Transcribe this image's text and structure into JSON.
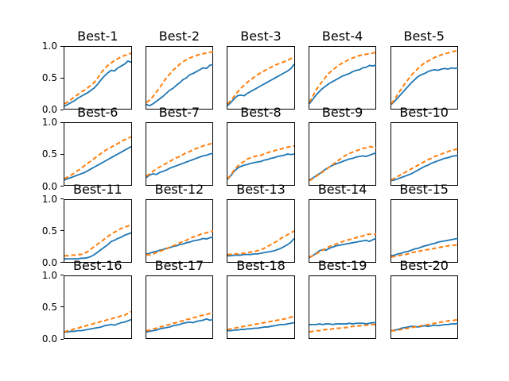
{
  "figure": {
    "background": "#ffffff",
    "rows": 4,
    "cols": 5
  },
  "colors": {
    "blue_series": "#1f77b4",
    "orange_series": "#ff7f0e",
    "spine": "#000000",
    "text": "#000000"
  },
  "chart_data": {
    "type": "line",
    "layout": {
      "rows": 4,
      "cols": 5
    },
    "ylim": [
      0.0,
      1.0
    ],
    "yticks": [
      1.0,
      0.5,
      0.0
    ],
    "ytick_labels": [
      "1.0",
      "0.5",
      "0.0"
    ],
    "xticks": [],
    "xlabel": "",
    "ylabel": "",
    "grid": false,
    "legend": null,
    "n_points": 21,
    "x": [
      0,
      0.05,
      0.1,
      0.15,
      0.2,
      0.25,
      0.3,
      0.35,
      0.4,
      0.45,
      0.5,
      0.55,
      0.6,
      0.65,
      0.7,
      0.75,
      0.8,
      0.85,
      0.9,
      0.95,
      1.0
    ],
    "series_meta": [
      {
        "name": "blue-solid",
        "style": "solid",
        "color": "#1f77b4",
        "linewidth": 1.8
      },
      {
        "name": "orange-dashed",
        "style": "dashed",
        "color": "#ff7f0e",
        "linewidth": 2.0
      }
    ],
    "subplots": [
      {
        "title": "Best-1",
        "blue": [
          0.04,
          0.07,
          0.1,
          0.13,
          0.17,
          0.2,
          0.23,
          0.26,
          0.3,
          0.34,
          0.4,
          0.47,
          0.53,
          0.58,
          0.62,
          0.61,
          0.66,
          0.69,
          0.72,
          0.77,
          0.75
        ],
        "orange": [
          0.08,
          0.11,
          0.15,
          0.19,
          0.23,
          0.27,
          0.3,
          0.34,
          0.38,
          0.43,
          0.5,
          0.58,
          0.65,
          0.7,
          0.74,
          0.78,
          0.81,
          0.84,
          0.86,
          0.87,
          0.9
        ]
      },
      {
        "title": "Best-2",
        "blue": [
          0.07,
          0.05,
          0.08,
          0.12,
          0.16,
          0.2,
          0.25,
          0.3,
          0.33,
          0.38,
          0.42,
          0.47,
          0.5,
          0.55,
          0.57,
          0.6,
          0.63,
          0.66,
          0.65,
          0.7,
          0.72
        ],
        "orange": [
          0.1,
          0.14,
          0.2,
          0.27,
          0.34,
          0.42,
          0.5,
          0.56,
          0.62,
          0.67,
          0.72,
          0.76,
          0.79,
          0.82,
          0.84,
          0.86,
          0.88,
          0.89,
          0.9,
          0.91,
          0.92
        ]
      },
      {
        "title": "Best-3",
        "blue": [
          0.05,
          0.1,
          0.16,
          0.21,
          0.22,
          0.21,
          0.25,
          0.28,
          0.31,
          0.34,
          0.37,
          0.4,
          0.43,
          0.46,
          0.49,
          0.52,
          0.55,
          0.58,
          0.61,
          0.65,
          0.72
        ],
        "orange": [
          0.08,
          0.13,
          0.2,
          0.27,
          0.33,
          0.38,
          0.43,
          0.47,
          0.51,
          0.55,
          0.58,
          0.61,
          0.64,
          0.67,
          0.7,
          0.72,
          0.74,
          0.76,
          0.78,
          0.81,
          0.84
        ]
      },
      {
        "title": "Best-4",
        "blue": [
          0.08,
          0.15,
          0.22,
          0.28,
          0.33,
          0.37,
          0.41,
          0.44,
          0.47,
          0.5,
          0.53,
          0.55,
          0.57,
          0.6,
          0.62,
          0.63,
          0.66,
          0.67,
          0.7,
          0.69,
          0.71
        ],
        "orange": [
          0.1,
          0.2,
          0.3,
          0.38,
          0.45,
          0.52,
          0.58,
          0.63,
          0.67,
          0.71,
          0.74,
          0.77,
          0.8,
          0.82,
          0.84,
          0.86,
          0.87,
          0.88,
          0.89,
          0.9,
          0.91
        ]
      },
      {
        "title": "Best-5",
        "blue": [
          0.07,
          0.12,
          0.18,
          0.24,
          0.3,
          0.36,
          0.42,
          0.47,
          0.52,
          0.55,
          0.57,
          0.6,
          0.62,
          0.63,
          0.62,
          0.64,
          0.65,
          0.64,
          0.66,
          0.65,
          0.66
        ],
        "orange": [
          0.08,
          0.15,
          0.24,
          0.32,
          0.4,
          0.47,
          0.54,
          0.6,
          0.65,
          0.7,
          0.74,
          0.77,
          0.8,
          0.83,
          0.85,
          0.87,
          0.89,
          0.9,
          0.92,
          0.93,
          0.94
        ]
      },
      {
        "title": "Best-6",
        "blue": [
          0.08,
          0.1,
          0.12,
          0.14,
          0.16,
          0.18,
          0.2,
          0.23,
          0.26,
          0.29,
          0.32,
          0.35,
          0.38,
          0.41,
          0.44,
          0.47,
          0.5,
          0.53,
          0.56,
          0.59,
          0.62
        ],
        "orange": [
          0.1,
          0.13,
          0.16,
          0.19,
          0.23,
          0.27,
          0.31,
          0.35,
          0.39,
          0.43,
          0.47,
          0.51,
          0.55,
          0.58,
          0.61,
          0.64,
          0.67,
          0.7,
          0.73,
          0.75,
          0.78
        ]
      },
      {
        "title": "Best-7",
        "blue": [
          0.12,
          0.16,
          0.18,
          0.17,
          0.2,
          0.22,
          0.24,
          0.27,
          0.29,
          0.31,
          0.33,
          0.35,
          0.37,
          0.39,
          0.41,
          0.43,
          0.45,
          0.47,
          0.48,
          0.5,
          0.51
        ],
        "orange": [
          0.14,
          0.18,
          0.22,
          0.26,
          0.29,
          0.32,
          0.35,
          0.38,
          0.41,
          0.44,
          0.46,
          0.49,
          0.52,
          0.54,
          0.57,
          0.59,
          0.61,
          0.63,
          0.65,
          0.66,
          0.68
        ]
      },
      {
        "title": "Best-8",
        "blue": [
          0.09,
          0.15,
          0.22,
          0.27,
          0.3,
          0.32,
          0.33,
          0.35,
          0.36,
          0.37,
          0.38,
          0.4,
          0.41,
          0.43,
          0.44,
          0.46,
          0.47,
          0.48,
          0.5,
          0.49,
          0.5
        ],
        "orange": [
          0.1,
          0.16,
          0.24,
          0.3,
          0.35,
          0.38,
          0.42,
          0.44,
          0.46,
          0.47,
          0.48,
          0.5,
          0.52,
          0.54,
          0.55,
          0.57,
          0.58,
          0.6,
          0.61,
          0.62,
          0.63
        ]
      },
      {
        "title": "Best-9",
        "blue": [
          0.08,
          0.11,
          0.15,
          0.18,
          0.22,
          0.26,
          0.29,
          0.32,
          0.34,
          0.36,
          0.38,
          0.4,
          0.42,
          0.43,
          0.45,
          0.46,
          0.47,
          0.46,
          0.48,
          0.5,
          0.52
        ],
        "orange": [
          0.07,
          0.1,
          0.14,
          0.17,
          0.21,
          0.25,
          0.29,
          0.33,
          0.37,
          0.41,
          0.45,
          0.48,
          0.51,
          0.53,
          0.55,
          0.57,
          0.59,
          0.6,
          0.62,
          0.61,
          0.6
        ]
      },
      {
        "title": "Best-10",
        "blue": [
          0.07,
          0.08,
          0.1,
          0.12,
          0.14,
          0.16,
          0.18,
          0.21,
          0.24,
          0.27,
          0.3,
          0.32,
          0.35,
          0.37,
          0.39,
          0.41,
          0.43,
          0.44,
          0.46,
          0.47,
          0.48
        ],
        "orange": [
          0.08,
          0.11,
          0.14,
          0.17,
          0.2,
          0.23,
          0.26,
          0.29,
          0.32,
          0.35,
          0.38,
          0.41,
          0.43,
          0.46,
          0.48,
          0.5,
          0.52,
          0.54,
          0.56,
          0.57,
          0.58
        ]
      },
      {
        "title": "Best-11",
        "blue": [
          0.05,
          0.05,
          0.05,
          0.05,
          0.05,
          0.06,
          0.06,
          0.07,
          0.09,
          0.12,
          0.16,
          0.2,
          0.24,
          0.28,
          0.33,
          0.35,
          0.38,
          0.4,
          0.43,
          0.45,
          0.47
        ],
        "orange": [
          0.1,
          0.1,
          0.11,
          0.11,
          0.12,
          0.12,
          0.14,
          0.17,
          0.21,
          0.25,
          0.29,
          0.33,
          0.37,
          0.41,
          0.45,
          0.48,
          0.51,
          0.54,
          0.56,
          0.58,
          0.6
        ]
      },
      {
        "title": "Best-12",
        "blue": [
          0.13,
          0.14,
          0.16,
          0.17,
          0.19,
          0.2,
          0.22,
          0.23,
          0.25,
          0.26,
          0.28,
          0.29,
          0.31,
          0.32,
          0.34,
          0.35,
          0.36,
          0.38,
          0.37,
          0.39,
          0.4
        ],
        "orange": [
          0.12,
          0.11,
          0.13,
          0.15,
          0.17,
          0.19,
          0.21,
          0.24,
          0.26,
          0.28,
          0.31,
          0.33,
          0.35,
          0.38,
          0.4,
          0.42,
          0.44,
          0.46,
          0.47,
          0.49,
          0.5
        ]
      },
      {
        "title": "Best-13",
        "blue": [
          0.1,
          0.1,
          0.11,
          0.11,
          0.11,
          0.12,
          0.12,
          0.12,
          0.13,
          0.13,
          0.14,
          0.15,
          0.16,
          0.17,
          0.18,
          0.2,
          0.22,
          0.25,
          0.28,
          0.32,
          0.38
        ],
        "orange": [
          0.12,
          0.12,
          0.13,
          0.13,
          0.14,
          0.14,
          0.15,
          0.16,
          0.17,
          0.18,
          0.2,
          0.22,
          0.25,
          0.28,
          0.31,
          0.34,
          0.38,
          0.41,
          0.44,
          0.47,
          0.5
        ]
      },
      {
        "title": "Best-14",
        "blue": [
          0.07,
          0.1,
          0.14,
          0.18,
          0.2,
          0.19,
          0.22,
          0.24,
          0.26,
          0.27,
          0.28,
          0.29,
          0.3,
          0.31,
          0.32,
          0.33,
          0.34,
          0.35,
          0.33,
          0.36,
          0.38
        ],
        "orange": [
          0.08,
          0.1,
          0.13,
          0.16,
          0.19,
          0.22,
          0.25,
          0.27,
          0.29,
          0.31,
          0.33,
          0.35,
          0.36,
          0.38,
          0.39,
          0.41,
          0.42,
          0.44,
          0.45,
          0.44,
          0.45
        ]
      },
      {
        "title": "Best-15",
        "blue": [
          0.1,
          0.11,
          0.13,
          0.14,
          0.16,
          0.17,
          0.19,
          0.21,
          0.22,
          0.24,
          0.26,
          0.27,
          0.29,
          0.3,
          0.32,
          0.33,
          0.34,
          0.35,
          0.36,
          0.37,
          0.38
        ],
        "orange": [
          0.08,
          0.09,
          0.1,
          0.11,
          0.12,
          0.13,
          0.15,
          0.16,
          0.17,
          0.18,
          0.19,
          0.2,
          0.21,
          0.22,
          0.23,
          0.24,
          0.25,
          0.26,
          0.27,
          0.27,
          0.28
        ]
      },
      {
        "title": "Best-16",
        "blue": [
          0.1,
          0.1,
          0.11,
          0.11,
          0.12,
          0.12,
          0.13,
          0.14,
          0.15,
          0.16,
          0.17,
          0.18,
          0.2,
          0.21,
          0.22,
          0.21,
          0.23,
          0.25,
          0.26,
          0.28,
          0.3
        ],
        "orange": [
          0.1,
          0.12,
          0.13,
          0.15,
          0.16,
          0.18,
          0.19,
          0.21,
          0.22,
          0.24,
          0.25,
          0.27,
          0.28,
          0.3,
          0.31,
          0.33,
          0.34,
          0.36,
          0.37,
          0.4,
          0.43
        ]
      },
      {
        "title": "Best-17",
        "blue": [
          0.1,
          0.11,
          0.12,
          0.13,
          0.15,
          0.16,
          0.17,
          0.18,
          0.2,
          0.21,
          0.22,
          0.24,
          0.25,
          0.26,
          0.25,
          0.27,
          0.28,
          0.29,
          0.31,
          0.29,
          0.3
        ],
        "orange": [
          0.12,
          0.13,
          0.15,
          0.16,
          0.18,
          0.19,
          0.21,
          0.22,
          0.24,
          0.25,
          0.27,
          0.28,
          0.3,
          0.31,
          0.33,
          0.34,
          0.36,
          0.37,
          0.38,
          0.4,
          0.4
        ]
      },
      {
        "title": "Best-18",
        "blue": [
          0.12,
          0.12,
          0.13,
          0.13,
          0.14,
          0.14,
          0.15,
          0.15,
          0.16,
          0.16,
          0.17,
          0.18,
          0.18,
          0.19,
          0.2,
          0.21,
          0.22,
          0.22,
          0.23,
          0.24,
          0.25
        ],
        "orange": [
          0.14,
          0.15,
          0.16,
          0.17,
          0.18,
          0.19,
          0.2,
          0.21,
          0.22,
          0.23,
          0.24,
          0.25,
          0.26,
          0.27,
          0.28,
          0.29,
          0.3,
          0.31,
          0.32,
          0.34,
          0.35
        ]
      },
      {
        "title": "Best-19",
        "blue": [
          0.22,
          0.22,
          0.22,
          0.23,
          0.22,
          0.23,
          0.23,
          0.22,
          0.23,
          0.23,
          0.23,
          0.23,
          0.24,
          0.23,
          0.24,
          0.24,
          0.24,
          0.23,
          0.24,
          0.25,
          0.25
        ],
        "orange": [
          0.1,
          0.11,
          0.12,
          0.12,
          0.13,
          0.14,
          0.14,
          0.15,
          0.16,
          0.16,
          0.17,
          0.17,
          0.18,
          0.19,
          0.19,
          0.2,
          0.2,
          0.21,
          0.21,
          0.22,
          0.22
        ]
      },
      {
        "title": "Best-20",
        "blue": [
          0.12,
          0.13,
          0.14,
          0.16,
          0.17,
          0.18,
          0.19,
          0.19,
          0.18,
          0.19,
          0.2,
          0.19,
          0.2,
          0.21,
          0.2,
          0.21,
          0.22,
          0.22,
          0.23,
          0.23,
          0.24
        ],
        "orange": [
          0.12,
          0.12,
          0.13,
          0.14,
          0.15,
          0.16,
          0.17,
          0.18,
          0.19,
          0.2,
          0.21,
          0.22,
          0.23,
          0.24,
          0.25,
          0.26,
          0.27,
          0.28,
          0.28,
          0.29,
          0.3
        ]
      }
    ]
  }
}
